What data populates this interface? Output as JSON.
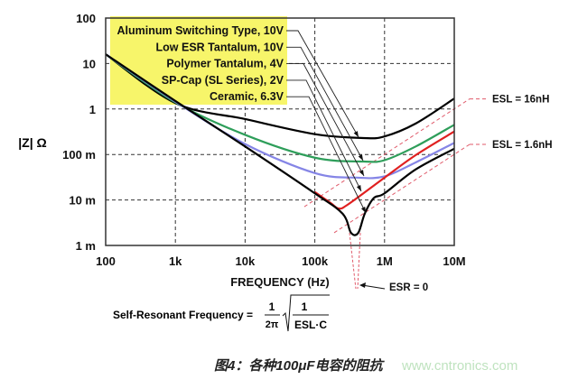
{
  "chart_data": {
    "type": "line",
    "xlabel": "FREQUENCY (Hz)",
    "ylabel": "|Z| Ω",
    "xscale": "log",
    "yscale": "log",
    "xlim": [
      100,
      10000000
    ],
    "ylim": [
      0.001,
      100
    ],
    "grid": true,
    "x_ticks": [
      {
        "value": 100,
        "label": "100"
      },
      {
        "value": 1000,
        "label": "1k"
      },
      {
        "value": 10000,
        "label": "10k"
      },
      {
        "value": 100000,
        "label": "100k"
      },
      {
        "value": 1000000,
        "label": "1M"
      },
      {
        "value": 10000000,
        "label": "10M"
      }
    ],
    "y_ticks": [
      {
        "value": 100,
        "label": "100"
      },
      {
        "value": 10,
        "label": "10"
      },
      {
        "value": 1,
        "label": "1"
      },
      {
        "value": 0.1,
        "label": "100 m"
      },
      {
        "value": 0.01,
        "label": "10 m"
      },
      {
        "value": 0.001,
        "label": "1 m"
      }
    ],
    "legend_placement": "top-left",
    "legend_color": "#f7f56a",
    "series": [
      {
        "name": "Aluminum Switching Type, 10V",
        "color": "#000000",
        "points": [
          [
            100,
            16
          ],
          [
            1000,
            1.35
          ],
          [
            10000,
            0.6
          ],
          [
            100000,
            0.28
          ],
          [
            500000,
            0.23
          ],
          [
            1000000,
            0.25
          ],
          [
            2800000,
            0.48
          ],
          [
            10000000,
            1.7
          ]
        ]
      },
      {
        "name": "Low ESR Tantalum, 10V",
        "color": "#2e9e5a",
        "points": [
          [
            100,
            16
          ],
          [
            1000,
            1.4
          ],
          [
            10000,
            0.27
          ],
          [
            100000,
            0.085
          ],
          [
            500000,
            0.07
          ],
          [
            1000000,
            0.075
          ],
          [
            2800000,
            0.15
          ],
          [
            10000000,
            0.45
          ]
        ]
      },
      {
        "name": "Polymer Tantalum, 4V",
        "color": "#8585e6",
        "points": [
          [
            100,
            16
          ],
          [
            1000,
            1.45
          ],
          [
            10000,
            0.17
          ],
          [
            100000,
            0.039
          ],
          [
            400000,
            0.031
          ],
          [
            1000000,
            0.033
          ],
          [
            2800000,
            0.067
          ],
          [
            10000000,
            0.18
          ]
        ]
      },
      {
        "name": "SP-Cap (SL Series), 2V",
        "color": "#e02020",
        "points": [
          [
            100000,
            0.015
          ],
          [
            170000,
            0.0085
          ],
          [
            220000,
            0.0065
          ],
          [
            300000,
            0.008
          ],
          [
            1000000,
            0.031
          ],
          [
            2800000,
            0.097
          ],
          [
            10000000,
            0.32
          ]
        ]
      },
      {
        "name": "Ceramic, 6.3V",
        "color": "#000000",
        "points": [
          [
            100,
            16
          ],
          [
            1000,
            1.5
          ],
          [
            10000,
            0.15
          ],
          [
            100000,
            0.014
          ],
          [
            250000,
            0.005
          ],
          [
            330000,
            0.0019
          ],
          [
            420000,
            0.0019
          ],
          [
            520000,
            0.005
          ],
          [
            700000,
            0.011
          ],
          [
            1000000,
            0.014
          ],
          [
            2800000,
            0.047
          ],
          [
            10000000,
            0.134
          ]
        ]
      }
    ],
    "annotations": {
      "esl_lines": [
        {
          "label": "ESL = 16nH",
          "henries": 1.6e-08
        },
        {
          "label": "ESL = 1.6nH",
          "henries": 1.6e-09
        }
      ],
      "esr_zero": "ESR = 0",
      "formula": {
        "lhs": "Self-Resonant Frequency =",
        "num": "1",
        "den": "2π",
        "sqrt_num": "1",
        "sqrt_den": "ESL·C"
      },
      "line_color": "#e05a6a"
    }
  },
  "caption": "图4：各种100μF电容的阻抗",
  "watermark": "www.cntronics.com"
}
